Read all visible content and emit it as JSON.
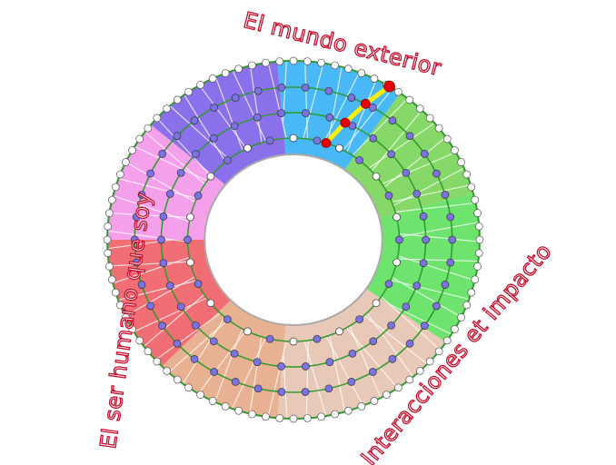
{
  "labels": {
    "top": "El mundo exterior",
    "left": "El ser humano que soy",
    "right": "Interacciones et impacto"
  },
  "colors": {
    "sectors": [
      "#49b8f7",
      "#86d868",
      "#6ee46e",
      "#e8c9b8",
      "#e8b292",
      "#f06e74",
      "#f5a0ea",
      "#8a70ea"
    ],
    "ring_line": "#2e9a2e",
    "inner_dot": "#7b72e6",
    "outer_dot": "#ffffff",
    "path": "#ffee00",
    "path_dot": "#e80000",
    "label": "#c8102e"
  }
}
